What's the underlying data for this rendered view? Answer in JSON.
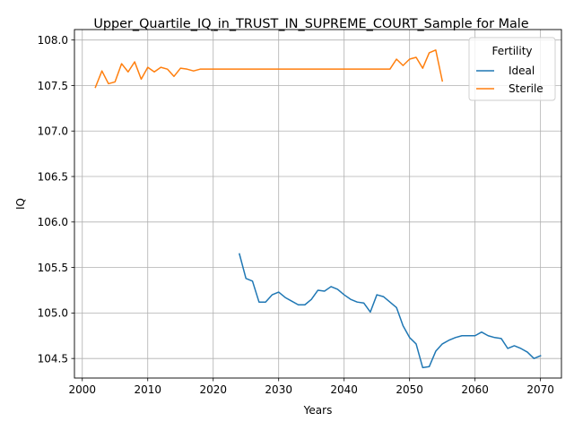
{
  "chart_data": {
    "type": "line",
    "title": "Upper_Quartile_IQ_in_TRUST_IN_SUPREME_COURT_Sample for Male",
    "xlabel": "Years",
    "ylabel": "IQ",
    "xlim": [
      1998.8,
      2073.2
    ],
    "ylim": [
      104.285,
      108.115
    ],
    "x_ticks": [
      2000,
      2010,
      2020,
      2030,
      2040,
      2050,
      2060,
      2070
    ],
    "y_ticks": [
      104.5,
      105.0,
      105.5,
      106.0,
      106.5,
      107.0,
      107.5,
      108.0
    ],
    "x_tick_labels": [
      "2000",
      "2010",
      "2020",
      "2030",
      "2040",
      "2050",
      "2060",
      "2070"
    ],
    "y_tick_labels": [
      "104.5",
      "105.0",
      "105.5",
      "106.0",
      "106.5",
      "107.0",
      "107.5",
      "108.0"
    ],
    "grid": true,
    "legend": {
      "title": "Fertility",
      "placement": "upper right"
    },
    "series": [
      {
        "name": "Ideal",
        "color": "#1f77b4",
        "x": [
          2024,
          2025,
          2026,
          2027,
          2028,
          2029,
          2030,
          2031,
          2032,
          2033,
          2034,
          2035,
          2036,
          2037,
          2038,
          2039,
          2040,
          2041,
          2042,
          2043,
          2044,
          2045,
          2046,
          2047,
          2048,
          2049,
          2050,
          2051,
          2052,
          2053,
          2054,
          2055,
          2056,
          2057,
          2058,
          2059,
          2060,
          2061,
          2062,
          2063,
          2064,
          2065,
          2066,
          2067,
          2068,
          2069,
          2070
        ],
        "y": [
          105.65,
          105.38,
          105.35,
          105.12,
          105.12,
          105.2,
          105.23,
          105.17,
          105.13,
          105.09,
          105.09,
          105.15,
          105.25,
          105.24,
          105.29,
          105.26,
          105.2,
          105.15,
          105.12,
          105.11,
          105.01,
          105.2,
          105.18,
          105.12,
          105.06,
          104.86,
          104.73,
          104.66,
          104.4,
          104.41,
          104.58,
          104.66,
          104.7,
          104.73,
          104.75,
          104.75,
          104.75,
          104.79,
          104.75,
          104.73,
          104.72,
          104.61,
          104.64,
          104.61,
          104.57,
          104.5,
          104.53
        ]
      },
      {
        "name": "Sterile",
        "color": "#ff7f0e",
        "x": [
          2002,
          2003,
          2004,
          2005,
          2006,
          2007,
          2008,
          2009,
          2010,
          2011,
          2012,
          2013,
          2014,
          2015,
          2016,
          2017,
          2018,
          2019,
          2020,
          2021,
          2022,
          2023,
          2024,
          2025,
          2026,
          2027,
          2028,
          2029,
          2030,
          2031,
          2032,
          2033,
          2034,
          2035,
          2036,
          2037,
          2038,
          2039,
          2040,
          2041,
          2042,
          2043,
          2044,
          2045,
          2046,
          2047,
          2048,
          2049,
          2050,
          2051,
          2052,
          2053,
          2054,
          2055
        ],
        "y": [
          107.48,
          107.66,
          107.52,
          107.54,
          107.74,
          107.65,
          107.76,
          107.57,
          107.7,
          107.65,
          107.7,
          107.68,
          107.6,
          107.69,
          107.68,
          107.66,
          107.68,
          107.68,
          107.68,
          107.68,
          107.68,
          107.68,
          107.68,
          107.68,
          107.68,
          107.68,
          107.68,
          107.68,
          107.68,
          107.68,
          107.68,
          107.68,
          107.68,
          107.68,
          107.68,
          107.68,
          107.68,
          107.68,
          107.68,
          107.68,
          107.68,
          107.68,
          107.68,
          107.68,
          107.68,
          107.68,
          107.79,
          107.72,
          107.79,
          107.81,
          107.69,
          107.86,
          107.89,
          107.55
        ]
      }
    ]
  }
}
